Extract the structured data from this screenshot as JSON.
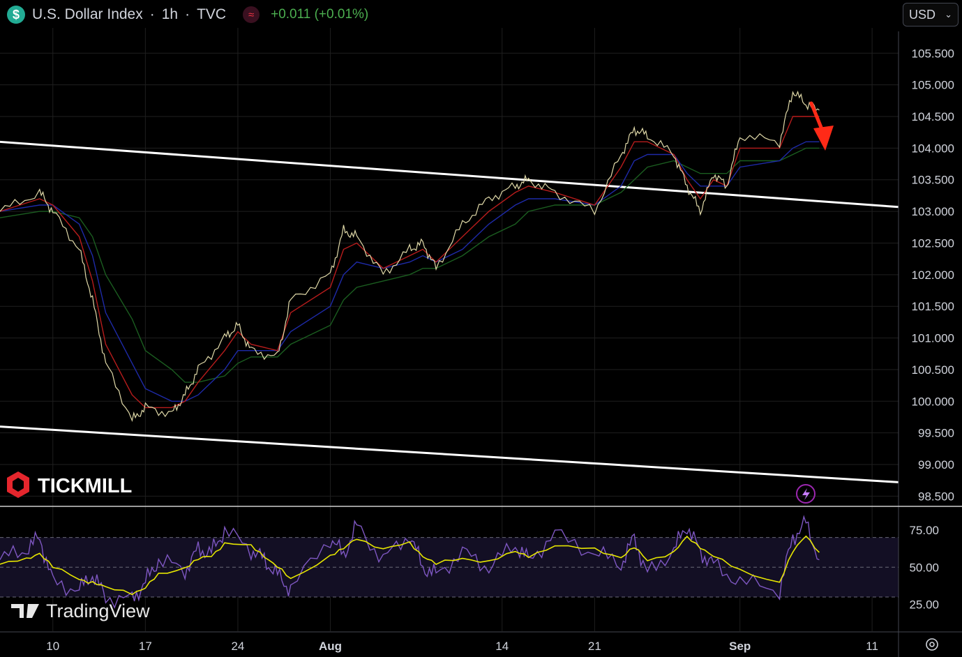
{
  "header": {
    "title": "U.S. Dollar Index",
    "interval": "1h",
    "exchange": "TVC",
    "separator": "·",
    "change": "+0.011 (+0.01%)",
    "symbol_icon": "$",
    "change_icon": "≈"
  },
  "currency_select": {
    "value": "USD",
    "chevron": "⌄"
  },
  "branding": {
    "broker": "TICKMILL",
    "platform": "TradingView"
  },
  "colors": {
    "background": "#000000",
    "grid": "#1f1f1f",
    "text": "#d1d4dc",
    "candle": "#e0d9a8",
    "ema_fast": "#b71c1c",
    "ema_mid": "#1e2aa8",
    "ema_slow": "#1b5e20",
    "channel": "#ffffff",
    "arrow": "#ff2a17",
    "rsi": "#7e57c2",
    "rsi_ma": "#e6e600",
    "change_positive": "#4caf50",
    "brand_red": "#e5262d"
  },
  "chart_data": [
    {
      "type": "line",
      "description_series": "hourly price path of U.S. Dollar Index",
      "x_tick_labels": [
        "10",
        "17",
        "24",
        "Aug",
        "14",
        "21",
        "Sep",
        "11"
      ],
      "y_tick_labels": [
        "105.500",
        "105.000",
        "104.500",
        "104.000",
        "103.500",
        "103.000",
        "102.500",
        "102.000",
        "101.500",
        "101.000",
        "100.500",
        "100.000",
        "99.500",
        "99.000",
        "98.500"
      ],
      "ylim": [
        98.35,
        105.9
      ],
      "xlim": [
        "Jul 6",
        "Sep 13"
      ],
      "grid": true,
      "x": [
        "Jul 6",
        "Jul 9",
        "Jul 10",
        "Jul 12",
        "Jul 13",
        "Jul 14",
        "Jul 16",
        "Jul 17",
        "Jul 19",
        "Jul 20",
        "Jul 21",
        "Jul 23",
        "Jul 24",
        "Jul 25",
        "Jul 27",
        "Jul 28",
        "Jul 31",
        "Aug 2",
        "Aug 3",
        "Aug 5",
        "Aug 7",
        "Aug 8",
        "Aug 9",
        "Aug 11",
        "Aug 13",
        "Aug 15",
        "Aug 16",
        "Aug 18",
        "Aug 21",
        "Aug 23",
        "Aug 24",
        "Aug 25",
        "Aug 27",
        "Aug 28",
        "Aug 29",
        "Aug 30",
        "Aug 31",
        "Sep 1",
        "Sep 4",
        "Sep 5",
        "Sep 6",
        "Sep 7"
      ],
      "series": [
        {
          "values": [
            103.0,
            103.3,
            103.0,
            102.4,
            101.6,
            100.6,
            99.7,
            99.9,
            99.8,
            100.1,
            100.5,
            101.0,
            101.2,
            100.8,
            100.7,
            101.6,
            102.0,
            102.7,
            102.6,
            102.0,
            102.4,
            102.5,
            102.1,
            102.8,
            103.2,
            103.4,
            103.5,
            103.3,
            103.0,
            103.9,
            104.3,
            104.2,
            103.9,
            103.4,
            103.0,
            103.6,
            103.4,
            104.2,
            104.1,
            104.9,
            104.7,
            104.6
          ]
        }
      ],
      "ema_fast": [
        103.0,
        103.2,
        103.1,
        102.6,
        101.9,
        100.9,
        100.1,
        99.9,
        99.9,
        100.0,
        100.3,
        100.8,
        101.1,
        100.9,
        100.8,
        101.4,
        101.8,
        102.4,
        102.5,
        102.1,
        102.3,
        102.4,
        102.2,
        102.6,
        103.0,
        103.3,
        103.4,
        103.3,
        103.1,
        103.7,
        104.1,
        104.1,
        103.9,
        103.5,
        103.2,
        103.5,
        103.4,
        104.0,
        104.0,
        104.5,
        104.5,
        104.5
      ],
      "ema_mid": [
        103.0,
        103.1,
        103.1,
        102.8,
        102.3,
        101.4,
        100.6,
        100.2,
        100.0,
        100.0,
        100.1,
        100.5,
        100.8,
        100.8,
        100.8,
        101.1,
        101.5,
        102.0,
        102.2,
        102.1,
        102.2,
        102.3,
        102.2,
        102.4,
        102.8,
        103.1,
        103.2,
        103.2,
        103.1,
        103.4,
        103.8,
        103.9,
        103.9,
        103.6,
        103.4,
        103.4,
        103.4,
        103.7,
        103.8,
        104.0,
        104.1,
        104.1
      ],
      "ema_slow": [
        102.9,
        103.0,
        103.0,
        102.9,
        102.6,
        102.0,
        101.3,
        100.8,
        100.5,
        100.3,
        100.3,
        100.4,
        100.6,
        100.7,
        100.7,
        100.9,
        101.2,
        101.6,
        101.8,
        101.9,
        102.0,
        102.1,
        102.1,
        102.3,
        102.6,
        102.8,
        103.0,
        103.1,
        103.1,
        103.3,
        103.5,
        103.7,
        103.8,
        103.7,
        103.6,
        103.6,
        103.6,
        103.8,
        103.8,
        103.9,
        104.0,
        104.0
      ],
      "channel_upper": {
        "x": [
          "Jul 6",
          "Sep 13"
        ],
        "y": [
          104.1,
          103.07
        ]
      },
      "channel_lower": {
        "x": [
          "Jul 6",
          "Sep 13"
        ],
        "y": [
          99.6,
          98.72
        ]
      }
    },
    {
      "type": "line",
      "description_series": "RSI oscillator pane",
      "y_tick_labels": [
        "75.00",
        "50.00",
        "25.00"
      ],
      "ylim": [
        7,
        90
      ],
      "band": [
        30,
        70
      ],
      "x": [
        "Jul 6",
        "Jul 8",
        "Jul 9",
        "Jul 10",
        "Jul 12",
        "Jul 13",
        "Jul 14",
        "Jul 16",
        "Jul 17",
        "Jul 18",
        "Jul 20",
        "Jul 21",
        "Jul 22",
        "Jul 23",
        "Jul 25",
        "Jul 26",
        "Jul 27",
        "Jul 28",
        "Aug 1",
        "Aug 2",
        "Aug 3",
        "Aug 5",
        "Aug 7",
        "Aug 8",
        "Aug 9",
        "Aug 11",
        "Aug 13",
        "Aug 15",
        "Aug 16",
        "Aug 18",
        "Aug 21",
        "Aug 23",
        "Aug 24",
        "Aug 25",
        "Aug 27",
        "Aug 28",
        "Aug 29",
        "Aug 30",
        "Sep 1",
        "Sep 4",
        "Sep 5",
        "Sep 6",
        "Sep 7"
      ],
      "series": [
        {
          "values": [
            55,
            62,
            70,
            40,
            35,
            45,
            30,
            28,
            40,
            55,
            48,
            62,
            60,
            75,
            62,
            55,
            45,
            35,
            70,
            58,
            78,
            55,
            72,
            50,
            45,
            60,
            50,
            65,
            55,
            72,
            60,
            52,
            70,
            45,
            62,
            78,
            60,
            52,
            40,
            35,
            70,
            80,
            55
          ]
        }
      ],
      "ma": [
        52,
        55,
        60,
        50,
        42,
        40,
        36,
        33,
        36,
        45,
        50,
        55,
        58,
        66,
        64,
        58,
        50,
        42,
        58,
        62,
        70,
        62,
        66,
        58,
        52,
        56,
        54,
        60,
        58,
        64,
        62,
        57,
        63,
        55,
        60,
        70,
        64,
        57,
        48,
        40,
        60,
        72,
        60
      ]
    }
  ]
}
